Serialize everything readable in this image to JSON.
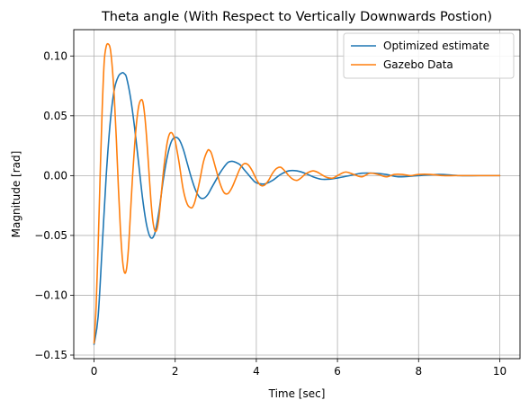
{
  "chart_data": {
    "type": "line",
    "title": "Theta angle (With Respect to Vertically Downwards Postion)",
    "xlabel": "Time [sec]",
    "ylabel": "Magnitude [rad]",
    "xlim": [
      -0.5,
      10.5
    ],
    "ylim": [
      -0.153,
      0.122
    ],
    "xticks": [
      0,
      2,
      4,
      6,
      8,
      10
    ],
    "xtick_labels": [
      "0",
      "2",
      "4",
      "6",
      "8",
      "10"
    ],
    "yticks": [
      -0.15,
      -0.1,
      -0.05,
      0.0,
      0.05,
      0.1
    ],
    "ytick_labels": [
      "−0.15",
      "−0.10",
      "−0.05",
      "0.00",
      "0.05",
      "0.10"
    ],
    "grid": true,
    "legend_position": "top-right",
    "series": [
      {
        "name": "Optimized estimate",
        "color": "#1f77b4",
        "x": [
          0,
          0.1,
          0.2,
          0.3,
          0.4,
          0.5,
          0.6,
          0.7,
          0.75,
          0.8,
          0.9,
          1.0,
          1.1,
          1.2,
          1.3,
          1.4,
          1.5,
          1.6,
          1.7,
          1.8,
          1.9,
          2.0,
          2.1,
          2.2,
          2.3,
          2.4,
          2.5,
          2.6,
          2.7,
          2.8,
          2.9,
          3.0,
          3.1,
          3.2,
          3.3,
          3.4,
          3.5,
          3.6,
          3.7,
          3.8,
          3.9,
          4.0,
          4.2,
          4.4,
          4.6,
          4.8,
          5.0,
          5.2,
          5.4,
          5.6,
          5.8,
          6.0,
          6.3,
          6.6,
          6.9,
          7.2,
          7.5,
          8.0,
          8.5,
          9.0,
          9.5,
          10.0
        ],
        "y": [
          -0.141,
          -0.118,
          -0.06,
          0.0,
          0.045,
          0.072,
          0.083,
          0.086,
          0.085,
          0.082,
          0.065,
          0.04,
          0.01,
          -0.02,
          -0.042,
          -0.052,
          -0.048,
          -0.03,
          -0.005,
          0.015,
          0.028,
          0.032,
          0.03,
          0.022,
          0.01,
          -0.002,
          -0.012,
          -0.018,
          -0.019,
          -0.016,
          -0.01,
          -0.004,
          0.002,
          0.007,
          0.011,
          0.012,
          0.011,
          0.009,
          0.005,
          0.001,
          -0.003,
          -0.006,
          -0.007,
          -0.004,
          0.001,
          0.004,
          0.004,
          0.002,
          -0.001,
          -0.003,
          -0.003,
          -0.002,
          0.0,
          0.002,
          0.002,
          0.001,
          -0.001,
          0.0,
          0.001,
          0.0,
          0.0,
          0.0
        ]
      },
      {
        "name": "Gazebo Data",
        "color": "#ff7f0e",
        "x": [
          0,
          0.05,
          0.1,
          0.15,
          0.2,
          0.25,
          0.3,
          0.35,
          0.4,
          0.45,
          0.5,
          0.55,
          0.6,
          0.65,
          0.7,
          0.75,
          0.8,
          0.85,
          0.9,
          0.95,
          1.0,
          1.05,
          1.1,
          1.15,
          1.2,
          1.25,
          1.3,
          1.35,
          1.4,
          1.45,
          1.5,
          1.55,
          1.6,
          1.65,
          1.7,
          1.75,
          1.8,
          1.85,
          1.9,
          1.95,
          2.0,
          2.05,
          2.1,
          2.2,
          2.3,
          2.4,
          2.45,
          2.5,
          2.6,
          2.7,
          2.8,
          2.85,
          2.9,
          3.0,
          3.1,
          3.2,
          3.3,
          3.4,
          3.5,
          3.6,
          3.7,
          3.8,
          3.9,
          4.0,
          4.1,
          4.2,
          4.3,
          4.4,
          4.5,
          4.6,
          4.7,
          4.8,
          4.9,
          5.0,
          5.1,
          5.2,
          5.3,
          5.4,
          5.5,
          5.6,
          5.7,
          5.8,
          5.9,
          6.0,
          6.2,
          6.4,
          6.6,
          6.8,
          7.0,
          7.2,
          7.4,
          7.6,
          7.8,
          8.0,
          8.3,
          8.6,
          8.9,
          9.2,
          9.5,
          9.8,
          10.0
        ],
        "y": [
          -0.14,
          -0.11,
          -0.06,
          0.0,
          0.055,
          0.095,
          0.108,
          0.11,
          0.106,
          0.09,
          0.065,
          0.03,
          -0.01,
          -0.045,
          -0.07,
          -0.081,
          -0.078,
          -0.06,
          -0.03,
          0.0,
          0.025,
          0.045,
          0.058,
          0.063,
          0.062,
          0.05,
          0.03,
          0.005,
          -0.02,
          -0.038,
          -0.046,
          -0.045,
          -0.035,
          -0.018,
          0.0,
          0.015,
          0.027,
          0.034,
          0.036,
          0.034,
          0.029,
          0.02,
          0.01,
          -0.012,
          -0.024,
          -0.027,
          -0.025,
          -0.02,
          -0.005,
          0.012,
          0.021,
          0.021,
          0.018,
          0.006,
          -0.006,
          -0.014,
          -0.015,
          -0.01,
          -0.002,
          0.006,
          0.01,
          0.009,
          0.004,
          -0.003,
          -0.008,
          -0.008,
          -0.004,
          0.002,
          0.006,
          0.007,
          0.004,
          0.0,
          -0.003,
          -0.004,
          -0.002,
          0.001,
          0.003,
          0.004,
          0.003,
          0.001,
          -0.001,
          -0.002,
          -0.002,
          0.0,
          0.003,
          0.001,
          -0.001,
          0.002,
          0.001,
          -0.001,
          0.001,
          0.001,
          0.0,
          0.001,
          0.001,
          0.0,
          0.0,
          0.0,
          0.0,
          0.0,
          0.0
        ]
      }
    ]
  }
}
